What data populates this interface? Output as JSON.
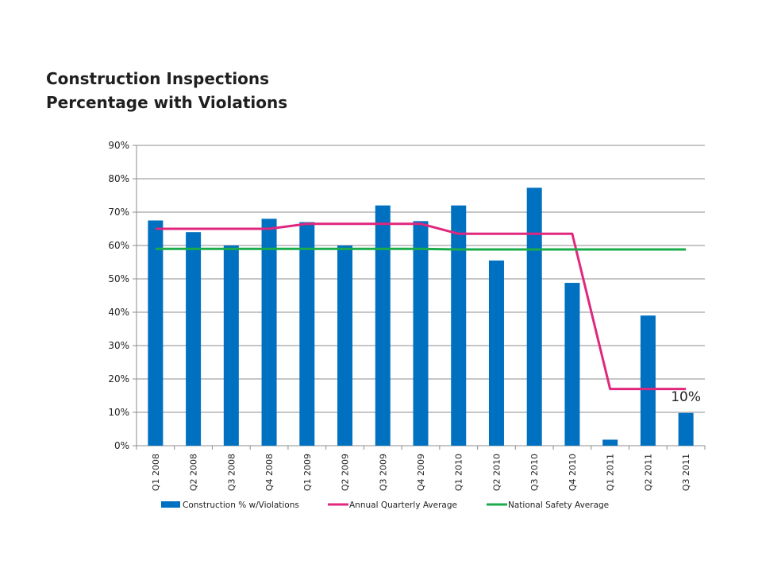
{
  "chart_data": {
    "type": "bar",
    "title": [
      "Construction Inspections",
      "Percentage with Violations"
    ],
    "categories": [
      "Q1 2008",
      "Q2 2008",
      "Q3 2008",
      "Q4 2008",
      "Q1 2009",
      "Q2 2009",
      "Q3 2009",
      "Q4 2009",
      "Q1 2010",
      "Q2 2010",
      "Q3 2010",
      "Q4 2010",
      "Q1 2011",
      "Q2 2011",
      "Q3 2011"
    ],
    "ylim": [
      0,
      90
    ],
    "yticks": [
      0,
      10,
      20,
      30,
      40,
      50,
      60,
      70,
      80,
      90
    ],
    "ytick_format": "%",
    "grid": true,
    "legend_position": "bottom",
    "series": [
      {
        "name": "Construction % w/Violations",
        "kind": "bar",
        "color": "#0070C0",
        "values": [
          67.5,
          64,
          60,
          68,
          67,
          60,
          72,
          67.3,
          72,
          55.5,
          77.3,
          48.8,
          1.8,
          39,
          9.8
        ]
      },
      {
        "name": "Annual Quarterly Average",
        "kind": "line",
        "color": "#E0277D",
        "values": [
          65,
          65,
          65,
          65,
          66.5,
          66.5,
          66.5,
          66.5,
          63.5,
          63.5,
          63.5,
          63.5,
          17,
          17,
          17
        ]
      },
      {
        "name": "National Safety Average",
        "kind": "line",
        "color": "#1AAB4B",
        "values": [
          59,
          59,
          59,
          59,
          59,
          59,
          59,
          59,
          58.8,
          58.8,
          58.8,
          58.8,
          58.8,
          58.8,
          58.8
        ]
      }
    ],
    "annotations": [
      {
        "text": "10%",
        "category": "Q3 2011"
      }
    ]
  }
}
